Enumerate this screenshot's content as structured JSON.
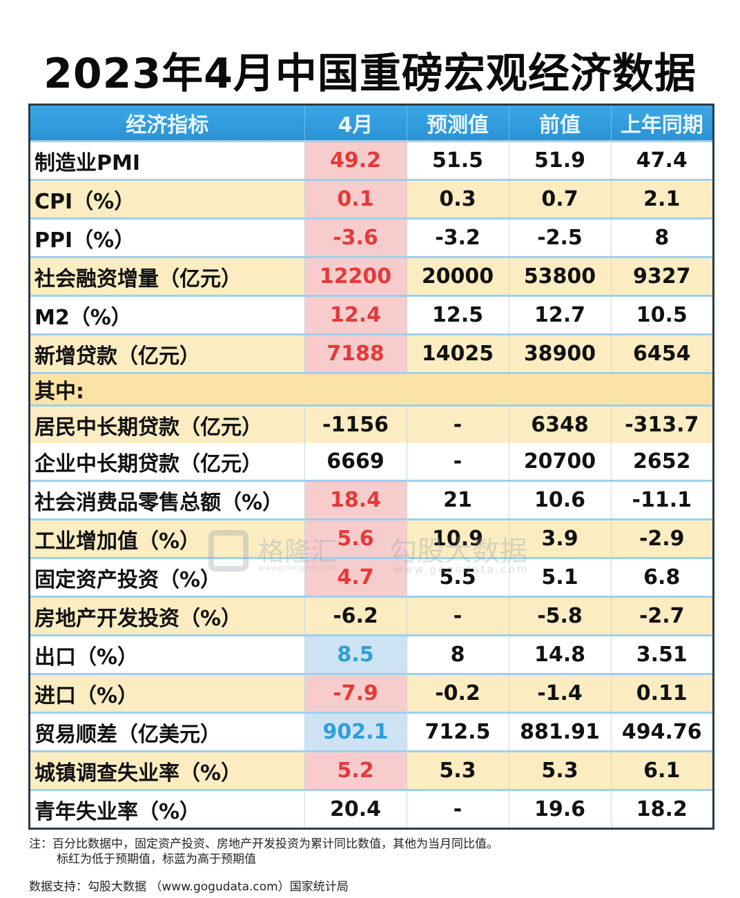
{
  "title": "2023年4月中国重磅宏观经济数据",
  "headers": [
    "经济指标",
    "4月",
    "预测值",
    "前值",
    "上年同期"
  ],
  "rows": [
    {
      "label": "制造业PMI",
      "apr": "49.2",
      "forecast": "51.5",
      "prev": "51.9",
      "yoy": "47.4",
      "style": "odd",
      "mark": "red"
    },
    {
      "label": "CPI（%）",
      "apr": "0.1",
      "forecast": "0.3",
      "prev": "0.7",
      "yoy": "2.1",
      "style": "even",
      "mark": "red"
    },
    {
      "label": "PPI（%）",
      "apr": "-3.6",
      "forecast": "-3.2",
      "prev": "-2.5",
      "yoy": "8",
      "style": "odd",
      "mark": "red"
    },
    {
      "label": "社会融资增量（亿元）",
      "apr": "12200",
      "forecast": "20000",
      "prev": "53800",
      "yoy": "9327",
      "style": "even",
      "mark": "red"
    },
    {
      "label": "M2（%）",
      "apr": "12.4",
      "forecast": "12.5",
      "prev": "12.7",
      "yoy": "10.5",
      "style": "odd",
      "mark": "red"
    },
    {
      "label": "新增贷款（亿元）",
      "apr": "7188",
      "forecast": "14025",
      "prev": "38900",
      "yoy": "6454",
      "style": "even",
      "mark": "red"
    },
    {
      "label": "其中:",
      "section": true
    },
    {
      "label": "居民中长期贷款（亿元）",
      "apr": "-1156",
      "forecast": "-",
      "prev": "6348",
      "yoy": "-313.7",
      "style": "sub",
      "mark": "none"
    },
    {
      "label": "企业中长期贷款（亿元）",
      "apr": "6669",
      "forecast": "-",
      "prev": "20700",
      "yoy": "2652",
      "style": "sub2",
      "mark": "none"
    },
    {
      "label": "社会消费品零售总额（%）",
      "apr": "18.4",
      "forecast": "21",
      "prev": "10.6",
      "yoy": "-11.1",
      "style": "odd",
      "mark": "red"
    },
    {
      "label": "工业增加值（%）",
      "apr": "5.6",
      "forecast": "10.9",
      "prev": "3.9",
      "yoy": "-2.9",
      "style": "even",
      "mark": "red"
    },
    {
      "label": "固定资产投资（%）",
      "apr": "4.7",
      "forecast": "5.5",
      "prev": "5.1",
      "yoy": "6.8",
      "style": "odd",
      "mark": "red"
    },
    {
      "label": "房地产开发投资（%）",
      "apr": "-6.2",
      "forecast": "-",
      "prev": "-5.8",
      "yoy": "-2.7",
      "style": "even",
      "mark": "none"
    },
    {
      "label": "出口（%）",
      "apr": "8.5",
      "forecast": "8",
      "prev": "14.8",
      "yoy": "3.51",
      "style": "odd",
      "mark": "blue"
    },
    {
      "label": "进口（%）",
      "apr": "-7.9",
      "forecast": "-0.2",
      "prev": "-1.4",
      "yoy": "0.11",
      "style": "even",
      "mark": "red"
    },
    {
      "label": "贸易顺差（亿美元）",
      "apr": "902.1",
      "forecast": "712.5",
      "prev": "881.91",
      "yoy": "494.76",
      "style": "odd",
      "mark": "blue"
    },
    {
      "label": "城镇调查失业率（%）",
      "apr": "5.2",
      "forecast": "5.3",
      "prev": "5.3",
      "yoy": "6.1",
      "style": "even",
      "mark": "red"
    },
    {
      "label": "青年失业率（%）",
      "apr": "20.4",
      "forecast": "-",
      "prev": "19.6",
      "yoy": "18.2",
      "style": "odd",
      "mark": "none"
    }
  ],
  "note_line1": "注：百分比数据中，固定资产投资、房地产开发投资为累计同比数值，其他为当月同比值。",
  "note_line2": "标红为低于预期值，标蓝为高于预期值",
  "source": "数据支持：勾股大数据 （www.gogudata.com）国家统计局",
  "watermark": {
    "brand1": "格隆汇",
    "brand1_url": "www.gelonghui.com",
    "brand2": "勾股大数据",
    "brand2_url": "www.gogudata.com"
  },
  "colors": {
    "header": "#3aa8e6",
    "below_forecast": "#e33a3a",
    "above_forecast": "#2f9fd8",
    "stripe": "#fbecc2"
  }
}
